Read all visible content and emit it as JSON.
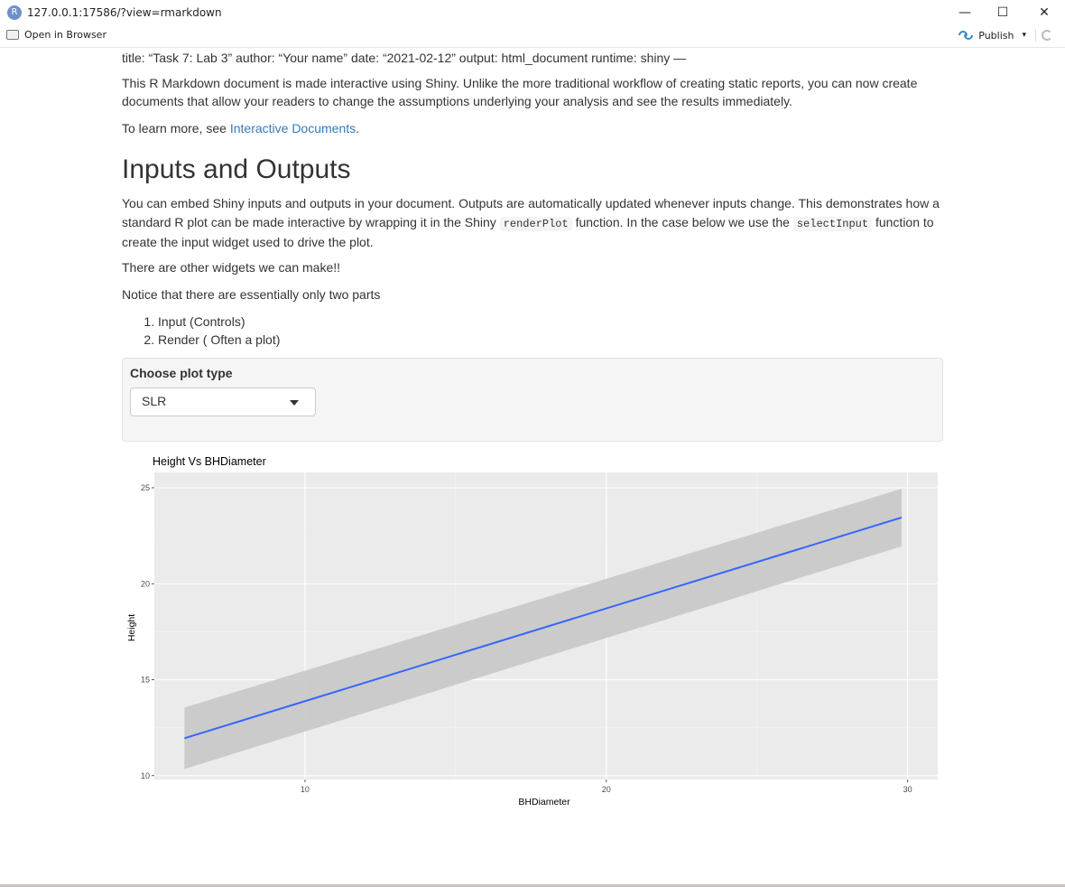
{
  "window": {
    "app_icon_letter": "R",
    "title": "127.0.0.1:17586/?view=rmarkdown",
    "minimize": "—",
    "maximize": "☐",
    "close": "✕"
  },
  "toolbar": {
    "open_in_browser": "Open in Browser",
    "publish": "Publish",
    "publish_caret": "▾"
  },
  "doc": {
    "yaml_text": "title: “Task 7: Lab 3” author: “Your name” date: “2021-02-12” output: html_document runtime: shiny —",
    "intro": "This R Markdown document is made interactive using Shiny. Unlike the more traditional workflow of creating static reports, you can now create documents that allow your readers to change the assumptions underlying your analysis and see the results immediately.",
    "learn_more_prefix": "To learn more, see ",
    "learn_more_link": "Interactive Documents",
    "learn_more_suffix": ".",
    "heading": "Inputs and Outputs",
    "para_a": "You can embed Shiny inputs and outputs in your document. Outputs are automatically updated whenever inputs change. This demonstrates how a standard R plot can be made interactive by wrapping it in the Shiny ",
    "code_render": "renderPlot",
    "para_b": " function. In the case below we use the ",
    "code_select": "selectInput",
    "para_c": " function to create the input widget used to drive the plot.",
    "widgets_note": "There are other widgets we can make!!",
    "parts_note": "Notice that there are essentially only two parts",
    "list": [
      "Input (Controls)",
      "Render ( Often a plot)"
    ]
  },
  "input": {
    "label": "Choose plot type",
    "selected": "SLR"
  },
  "colors": {
    "panel_bg": "#ebebeb",
    "ribbon": "#c8c8c8",
    "line": "#3366ff",
    "link": "#337ab7"
  },
  "chart_data": {
    "type": "line",
    "title": "Height Vs BHDiameter",
    "xlabel": "BHDiameter",
    "ylabel": "Height",
    "xlim": [
      5,
      31
    ],
    "ylim": [
      9.8,
      25.8
    ],
    "x_ticks": [
      10,
      20,
      30
    ],
    "y_ticks": [
      10,
      15,
      20,
      25
    ],
    "grid": true,
    "series": [
      {
        "x": [
          6,
          29.8
        ],
        "y": [
          11.95,
          23.45
        ],
        "lower": [
          10.35,
          21.95
        ],
        "upper": [
          13.55,
          24.95
        ]
      }
    ]
  }
}
